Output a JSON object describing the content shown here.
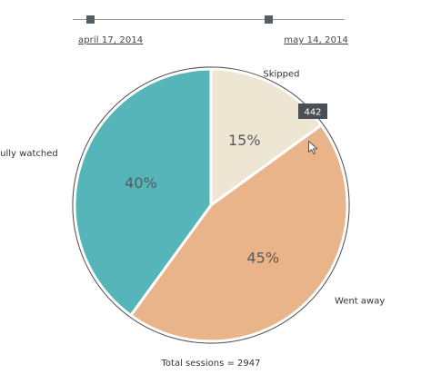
{
  "slider": {
    "start_label": "april 17, 2014",
    "end_label": "may 14, 2014"
  },
  "chart_data": {
    "type": "pie",
    "slices": [
      {
        "name": "Skipped",
        "percent": 15,
        "value_label": "15%",
        "color": "#ece6d3"
      },
      {
        "name": "Went away",
        "percent": 45,
        "value_label": "45%",
        "color": "#e9b489"
      },
      {
        "name": "Fully watched",
        "percent": 40,
        "value_label": "40%",
        "color": "#55b5b8"
      }
    ],
    "tooltip": {
      "slice": "Skipped",
      "text": "442"
    },
    "total_label": "Total sessions = 2947"
  },
  "colors": {
    "outline": "#555555",
    "label_text": "#333333",
    "percent_text": "#5a5a5a",
    "tooltip_bg": "#4a4f54",
    "tooltip_text": "#ffffff"
  },
  "icons": {
    "cursor": "mouse-pointer-icon"
  }
}
